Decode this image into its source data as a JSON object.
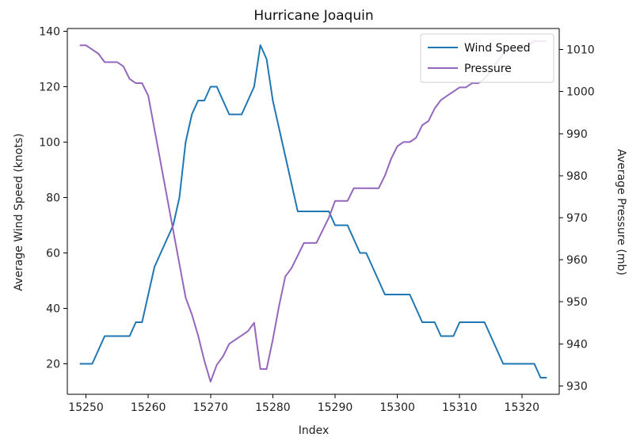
{
  "chart_data": {
    "type": "line",
    "title": "Hurricane Joaquin",
    "xlabel": "Index",
    "ylabel_left": "Average Wind Speed (knots)",
    "ylabel_right": "Average Pressure (mb)",
    "xlim": [
      15247,
      15326
    ],
    "ylim_left": [
      9,
      141
    ],
    "ylim_right": [
      928,
      1015
    ],
    "x_ticks": [
      15250,
      15260,
      15270,
      15280,
      15290,
      15300,
      15310,
      15320
    ],
    "y_ticks_left": [
      20,
      40,
      60,
      80,
      100,
      120,
      140
    ],
    "y_ticks_right": [
      930,
      940,
      950,
      960,
      970,
      980,
      990,
      1000,
      1010
    ],
    "legend_location": "upper right",
    "grid": false,
    "series": [
      {
        "name": "Wind Speed",
        "axis": "left",
        "color": "#1f77b4",
        "x": [
          15249,
          15250,
          15251,
          15252,
          15253,
          15254,
          15255,
          15256,
          15257,
          15258,
          15259,
          15260,
          15261,
          15262,
          15263,
          15264,
          15265,
          15266,
          15267,
          15268,
          15269,
          15270,
          15271,
          15272,
          15273,
          15274,
          15275,
          15276,
          15277,
          15278,
          15279,
          15280,
          15281,
          15282,
          15283,
          15284,
          15285,
          15286,
          15287,
          15288,
          15289,
          15290,
          15291,
          15292,
          15293,
          15294,
          15295,
          15296,
          15297,
          15298,
          15299,
          15300,
          15301,
          15302,
          15303,
          15304,
          15305,
          15306,
          15307,
          15308,
          15309,
          15310,
          15311,
          15312,
          15313,
          15314,
          15315,
          15316,
          15317,
          15318,
          15319,
          15320,
          15321,
          15322,
          15323,
          15324
        ],
        "y": [
          20,
          20,
          20,
          25,
          30,
          30,
          30,
          30,
          30,
          35,
          35,
          45,
          55,
          60,
          65,
          70,
          80,
          100,
          110,
          115,
          115,
          120,
          120,
          115,
          110,
          110,
          110,
          115,
          120,
          135,
          130,
          115,
          105,
          95,
          85,
          75,
          75,
          75,
          75,
          75,
          75,
          70,
          70,
          70,
          65,
          60,
          60,
          55,
          50,
          45,
          45,
          45,
          45,
          45,
          40,
          35,
          35,
          35,
          30,
          30,
          30,
          35,
          35,
          35,
          35,
          35,
          30,
          25,
          20,
          20,
          20,
          20,
          20,
          20,
          15,
          15
        ]
      },
      {
        "name": "Pressure",
        "axis": "right",
        "color": "#9467bd",
        "x": [
          15249,
          15250,
          15251,
          15252,
          15253,
          15254,
          15255,
          15256,
          15257,
          15258,
          15259,
          15260,
          15261,
          15262,
          15263,
          15264,
          15265,
          15266,
          15267,
          15268,
          15269,
          15270,
          15271,
          15272,
          15273,
          15274,
          15275,
          15276,
          15277,
          15278,
          15279,
          15280,
          15281,
          15282,
          15283,
          15284,
          15285,
          15286,
          15287,
          15288,
          15289,
          15290,
          15291,
          15292,
          15293,
          15294,
          15295,
          15296,
          15297,
          15298,
          15299,
          15300,
          15301,
          15302,
          15303,
          15304,
          15305,
          15306,
          15307,
          15308,
          15309,
          15310,
          15311,
          15312,
          15313,
          15314,
          15315,
          15316,
          15317,
          15318,
          15319,
          15320,
          15321,
          15322,
          15323,
          15324
        ],
        "y": [
          1011,
          1011,
          1010,
          1009,
          1007,
          1007,
          1007,
          1006,
          1003,
          1002,
          1002,
          999,
          991,
          983,
          975,
          967,
          959,
          951,
          947,
          942,
          936,
          931,
          935,
          937,
          940,
          941,
          942,
          943,
          945,
          934,
          934,
          941,
          949,
          956,
          958,
          961,
          964,
          964,
          964,
          967,
          970,
          974,
          974,
          974,
          977,
          977,
          977,
          977,
          977,
          980,
          984,
          987,
          988,
          988,
          989,
          992,
          993,
          996,
          998,
          999,
          1000,
          1001,
          1001,
          1002,
          1002,
          1003,
          1005,
          1007,
          1009,
          1010,
          1010,
          1011,
          1011,
          1012,
          1012,
          1012
        ]
      }
    ]
  }
}
